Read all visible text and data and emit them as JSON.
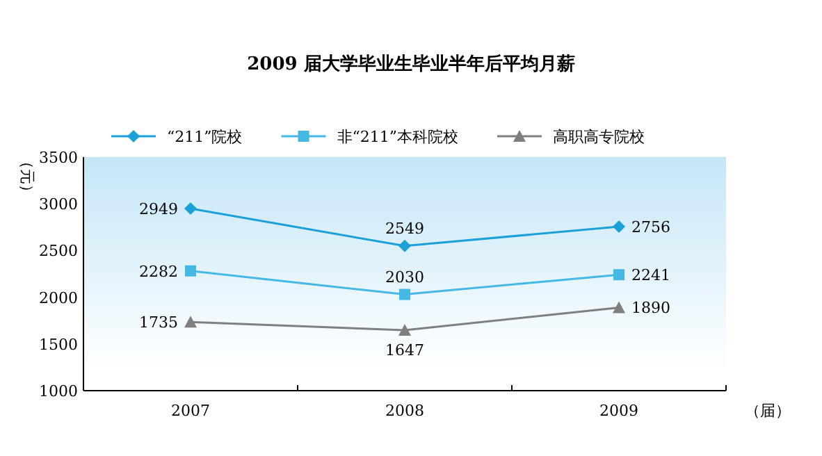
{
  "chart_data": {
    "type": "line",
    "title": "2009 届大学毕业生毕业半年后平均月薪",
    "xlabel": "（届）",
    "ylabel": "（元）",
    "categories": [
      "2007",
      "2008",
      "2009"
    ],
    "series": [
      {
        "name": "“211”院校",
        "color": "#1ba1d8",
        "marker": "diamond",
        "values": [
          2949,
          2549,
          2756
        ]
      },
      {
        "name": "非“211”本科院校",
        "color": "#45b8e3",
        "marker": "square",
        "values": [
          2282,
          2030,
          2241
        ]
      },
      {
        "name": "高职高专院校",
        "color": "#7f7f7f",
        "marker": "triangle",
        "values": [
          1735,
          1647,
          1890
        ]
      }
    ],
    "ylim": [
      1000,
      3500
    ],
    "yticks": [
      1000,
      1500,
      2000,
      2500,
      3000,
      3500
    ],
    "data_labels": true,
    "legend": "top",
    "grid": false
  }
}
